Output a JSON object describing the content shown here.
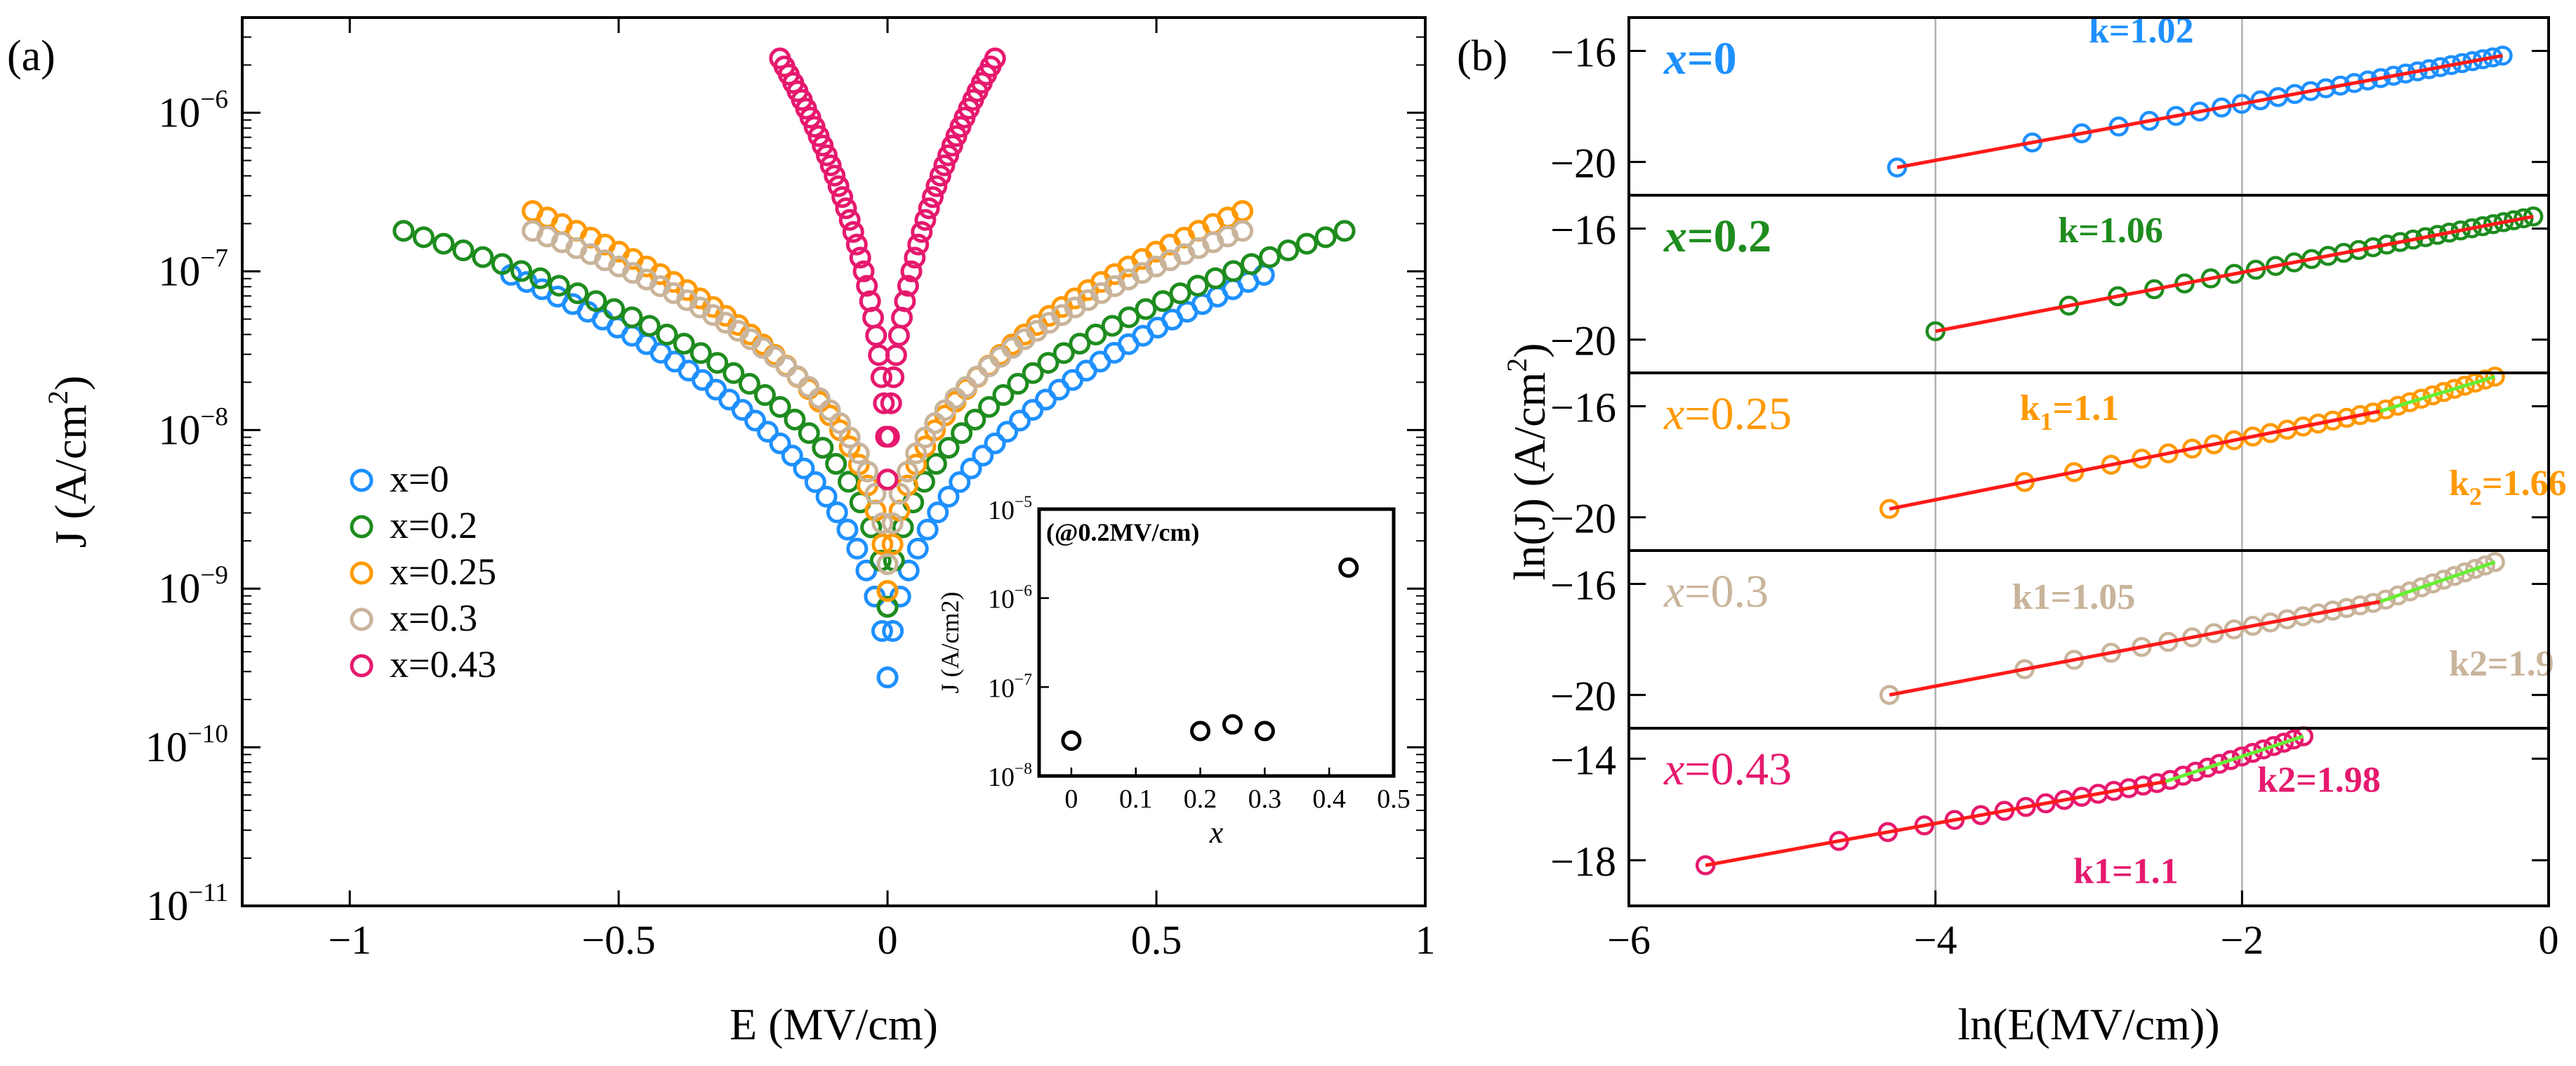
{
  "chart_data": [
    {
      "type": "scatter",
      "panel_label": "(a)",
      "xlabel": "E (MV/cm)",
      "ylabel": "J (A/cm",
      "ylabel_sup": "2",
      "ylabel_close": ")",
      "xlim": [
        -1.2,
        1.0
      ],
      "ylim_log10": [
        -11,
        -5.4
      ],
      "xticks": [
        -1,
        -0.5,
        0,
        0.5,
        1
      ],
      "xtick_labels": [
        "−1",
        "−0.5",
        "0",
        "0.5",
        "1"
      ],
      "yticks_log10": [
        -11,
        -10,
        -9,
        -8,
        -7,
        -6
      ],
      "ytick_bases": [
        "10",
        "10",
        "10",
        "10",
        "10",
        "10"
      ],
      "ytick_exps": [
        "−11",
        "−10",
        "−9",
        "−8",
        "−7",
        "−6"
      ],
      "legend_position": "lower-left",
      "series": [
        {
          "name": "x=0",
          "color": "#1e90ff",
          "emin": -0.7,
          "emax": 0.7,
          "jmax": 9.5e-08,
          "jmin": 1.5e-10,
          "alpha": 0.38
        },
        {
          "name": "x=0.2",
          "color": "#1e8c1e",
          "emin": -0.9,
          "emax": 0.85,
          "jmax": 1.8e-07,
          "jmin": 4e-10,
          "alpha": 0.36
        },
        {
          "name": "x=0.25",
          "color": "#ff9900",
          "emin": -0.66,
          "emax": 0.66,
          "jmax": 2.4e-07,
          "jmin": 5e-10,
          "alpha": 0.36
        },
        {
          "name": "x=0.3",
          "color": "#c9b49b",
          "emin": -0.66,
          "emax": 0.66,
          "jmax": 1.8e-07,
          "jmin": 8e-10,
          "alpha": 0.36
        },
        {
          "name": "x=0.43",
          "color": "#e6196e",
          "emin": -0.2,
          "emax": 0.2,
          "jmax": 2.2e-06,
          "jmin": 3e-09,
          "alpha": 0.42
        }
      ],
      "inset": {
        "label": "(@0.2MV/cm)",
        "xlabel": "x",
        "ylabel": "J (A/cm2)",
        "xlim": [
          -0.05,
          0.5
        ],
        "ylim_log10": [
          -8,
          -5
        ],
        "xticks": [
          0,
          0.1,
          0.2,
          0.3,
          0.4,
          0.5
        ],
        "xtick_labels": [
          "0",
          "0.1",
          "0.2",
          "0.3",
          "0.4",
          "0.5"
        ],
        "yticks_log10": [
          -8,
          -7,
          -6,
          -5
        ],
        "ytick_bases": [
          "10",
          "10",
          "10",
          "10"
        ],
        "ytick_exps": [
          "−8",
          "−7",
          "−6",
          "−5"
        ],
        "x": [
          0,
          0.2,
          0.25,
          0.3,
          0.43
        ],
        "y": [
          2.5e-08,
          3.2e-08,
          3.8e-08,
          3.2e-08,
          2.2e-06
        ]
      }
    },
    {
      "type": "scatter",
      "panel_label": "(b)",
      "xlabel": "ln(E(MV/cm))",
      "ylabel": "ln(J) (A/cm",
      "ylabel_sup": "2",
      "ylabel_close": ")",
      "xlim": [
        -6,
        0
      ],
      "xticks": [
        -6,
        -4,
        -2,
        0
      ],
      "xtick_labels": [
        "−6",
        "−4",
        "−2",
        "0"
      ],
      "vlines": [
        -4,
        -2
      ],
      "fit_color": "#ff1a1a",
      "fit2_color": "#66ee33",
      "panels": [
        {
          "name": "x=0",
          "name_var": "x",
          "name_val": "=0",
          "bold": true,
          "color": "#1e90ff",
          "ylim": [
            -21.2,
            -14.8
          ],
          "yticks": [
            -16,
            -20
          ],
          "ytick_labels": [
            "−16",
            "−20"
          ],
          "xmin": -4.25,
          "xmax": -0.3,
          "ystart": -20.2,
          "slope": 1.02,
          "break": null,
          "slope2": null,
          "ann1": {
            "text": "k=1.02",
            "x": -3.0,
            "y": -15.7,
            "bold": true
          },
          "ann2": null
        },
        {
          "name": "x=0.2",
          "name_var": "x",
          "name_val": "=0.2",
          "bold": true,
          "color": "#1e8c1e",
          "ylim": [
            -21.2,
            -14.8
          ],
          "yticks": [
            -16,
            -20
          ],
          "ytick_labels": [
            "−16",
            "−20"
          ],
          "xmin": -4.0,
          "xmax": -0.1,
          "ystart": -19.7,
          "slope": 1.06,
          "break": null,
          "slope2": null,
          "ann1": {
            "text": "k=1.06",
            "x": -3.2,
            "y": -16.5,
            "bold": true
          },
          "ann2": null
        },
        {
          "name": "x=0.25",
          "name_var": "x",
          "name_val": "=0.25",
          "bold": false,
          "color": "#ff9900",
          "ylim": [
            -21.2,
            -14.8
          ],
          "yticks": [
            -16,
            -20
          ],
          "ytick_labels": [
            "−16",
            "−20"
          ],
          "xmin": -4.3,
          "xmax": -0.35,
          "ystart": -19.7,
          "slope": 1.1,
          "break": -1.1,
          "slope2": 1.66,
          "ann1": {
            "text": "k",
            "sub": "1",
            "tail": "=1.1",
            "x": -3.45,
            "y": -16.5,
            "bold": true
          },
          "ann2": {
            "text": "k",
            "sub": "2",
            "tail": "=1.66",
            "x": -0.65,
            "y": -19.2,
            "bold": true
          }
        },
        {
          "name": "x=0.3",
          "name_var": "x",
          "name_val": "=0.3",
          "bold": false,
          "color": "#c9b49b",
          "ylim": [
            -21.2,
            -14.8
          ],
          "yticks": [
            -16,
            -20
          ],
          "ytick_labels": [
            "−16",
            "−20"
          ],
          "xmin": -4.3,
          "xmax": -0.35,
          "ystart": -20.0,
          "slope": 1.05,
          "break": -1.1,
          "slope2": 1.9,
          "ann1": {
            "text": "k1=1.05",
            "x": -3.5,
            "y": -16.9,
            "bold": true
          },
          "ann2": {
            "text": "k2=1.9",
            "x": -0.65,
            "y": -19.3,
            "bold": true
          }
        },
        {
          "name": "x=0.43",
          "name_var": "x",
          "name_val": "=0.43",
          "bold": false,
          "color": "#e6196e",
          "ylim": [
            -19.8,
            -12.8
          ],
          "yticks": [
            -14,
            -18
          ],
          "ytick_labels": [
            "−14",
            "−18"
          ],
          "xmin": -5.5,
          "xmax": -1.6,
          "ystart": -18.2,
          "slope": 1.1,
          "break": -2.5,
          "slope2": 1.98,
          "ann1": {
            "text": "k1=1.1",
            "x": -3.1,
            "y": -18.9,
            "bold": true
          },
          "ann2": {
            "text": "k2=1.98",
            "x": -1.9,
            "y": -15.3,
            "bold": true
          }
        }
      ]
    }
  ]
}
